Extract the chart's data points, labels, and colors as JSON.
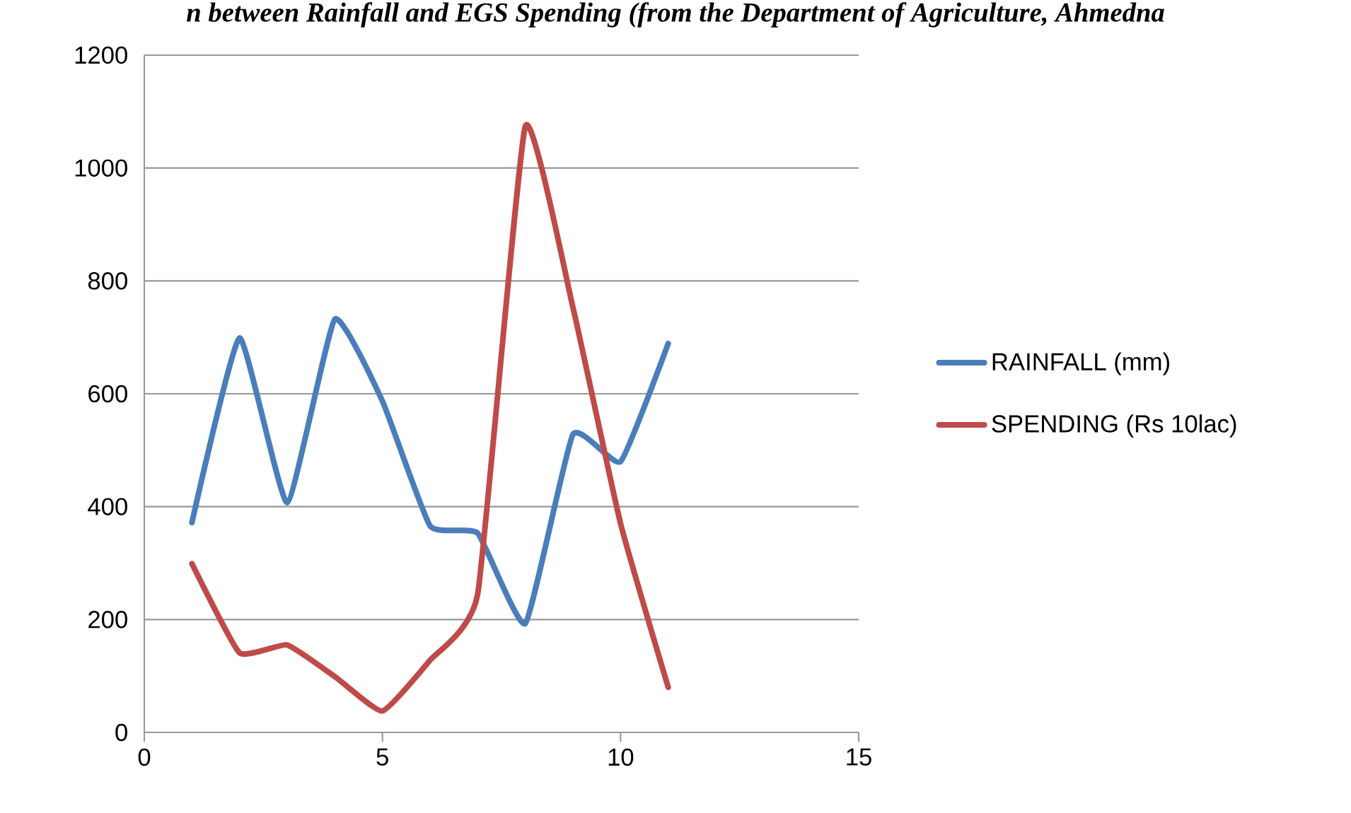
{
  "chart_data": {
    "type": "line",
    "title": "n between Rainfall and EGS Spending (from the Department of Agriculture, Ahmedna",
    "x": [
      1,
      2,
      3,
      4,
      5,
      6,
      7,
      8,
      9,
      10,
      11
    ],
    "series": [
      {
        "name": "RAINFALL (mm)",
        "color": "#4a7ebb",
        "values": [
          372,
          699,
          407,
          732,
          587,
          366,
          353,
          193,
          528,
          480,
          689
        ]
      },
      {
        "name": "SPENDING (Rs 10lac)",
        "color": "#be4b48",
        "values": [
          299,
          141,
          155,
          99,
          38,
          128,
          245,
          1074,
          753,
          370,
          80
        ]
      }
    ],
    "xlim": [
      0,
      15
    ],
    "xticks": [
      0,
      5,
      10,
      15
    ],
    "ylim": [
      0,
      1200
    ],
    "yticks": [
      0,
      200,
      400,
      600,
      800,
      1000,
      1200
    ],
    "grid": "y",
    "legend": "right",
    "marker": "none",
    "line_style": "solid"
  }
}
